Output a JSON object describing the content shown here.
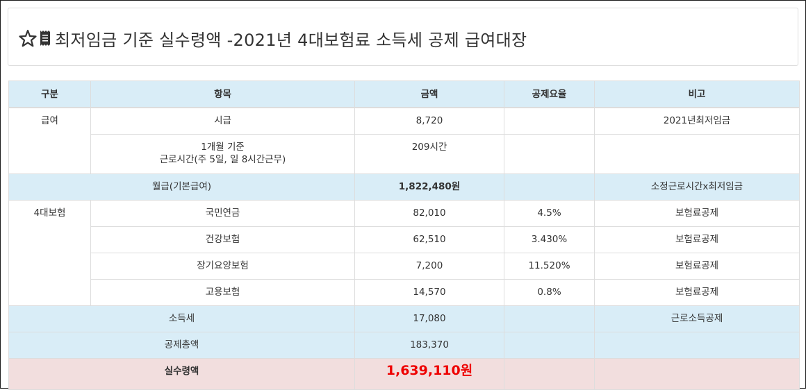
{
  "page": {
    "title": "최저임금 기준 실수령액 -2021년 4대보험료 소득세 공제 급여대장",
    "icons": [
      "star-outline-icon",
      "receipt-icon"
    ]
  },
  "table": {
    "headers": [
      "구분",
      "항목",
      "금액",
      "공제요율",
      "비고"
    ],
    "salary_group": {
      "label": "급여",
      "rows": [
        {
          "item": "시급",
          "amount": "8,720",
          "rate": "",
          "note": "2021년최저임금"
        },
        {
          "item_line1": "1개월 기준",
          "item_line2": "근로시간(주 5일, 일 8시간근무)",
          "amount": "209시간",
          "rate": "",
          "note": ""
        }
      ]
    },
    "base_pay": {
      "label": "월급(기본급여)",
      "amount": "1,822,480원",
      "rate": "",
      "note": "소정근로시간x최저임금"
    },
    "insurance_group": {
      "label": "4대보험",
      "rows": [
        {
          "item": "국민연금",
          "amount": "82,010",
          "rate": "4.5%",
          "note": "보험료공제"
        },
        {
          "item": "건강보험",
          "amount": "62,510",
          "rate": "3.430%",
          "note": "보험료공제"
        },
        {
          "item": "장기요양보험",
          "amount": "7,200",
          "rate": "11.520%",
          "note": "보험료공제"
        },
        {
          "item": "고용보험",
          "amount": "14,570",
          "rate": "0.8%",
          "note": "보험료공제"
        }
      ]
    },
    "income_tax": {
      "label": "소득세",
      "amount": "17,080",
      "rate": "",
      "note": "근로소득공제"
    },
    "total_deduction": {
      "label": "공제총액",
      "amount": "183,370",
      "rate": "",
      "note": ""
    },
    "net_pay": {
      "label": "실수령액",
      "amount": "1,639,110원",
      "rate": "",
      "note": ""
    }
  },
  "colors": {
    "header_bg": "#d9edf7",
    "net_row_bg": "#f2dede",
    "net_amount": "#ee0000",
    "border": "#dddddd"
  }
}
